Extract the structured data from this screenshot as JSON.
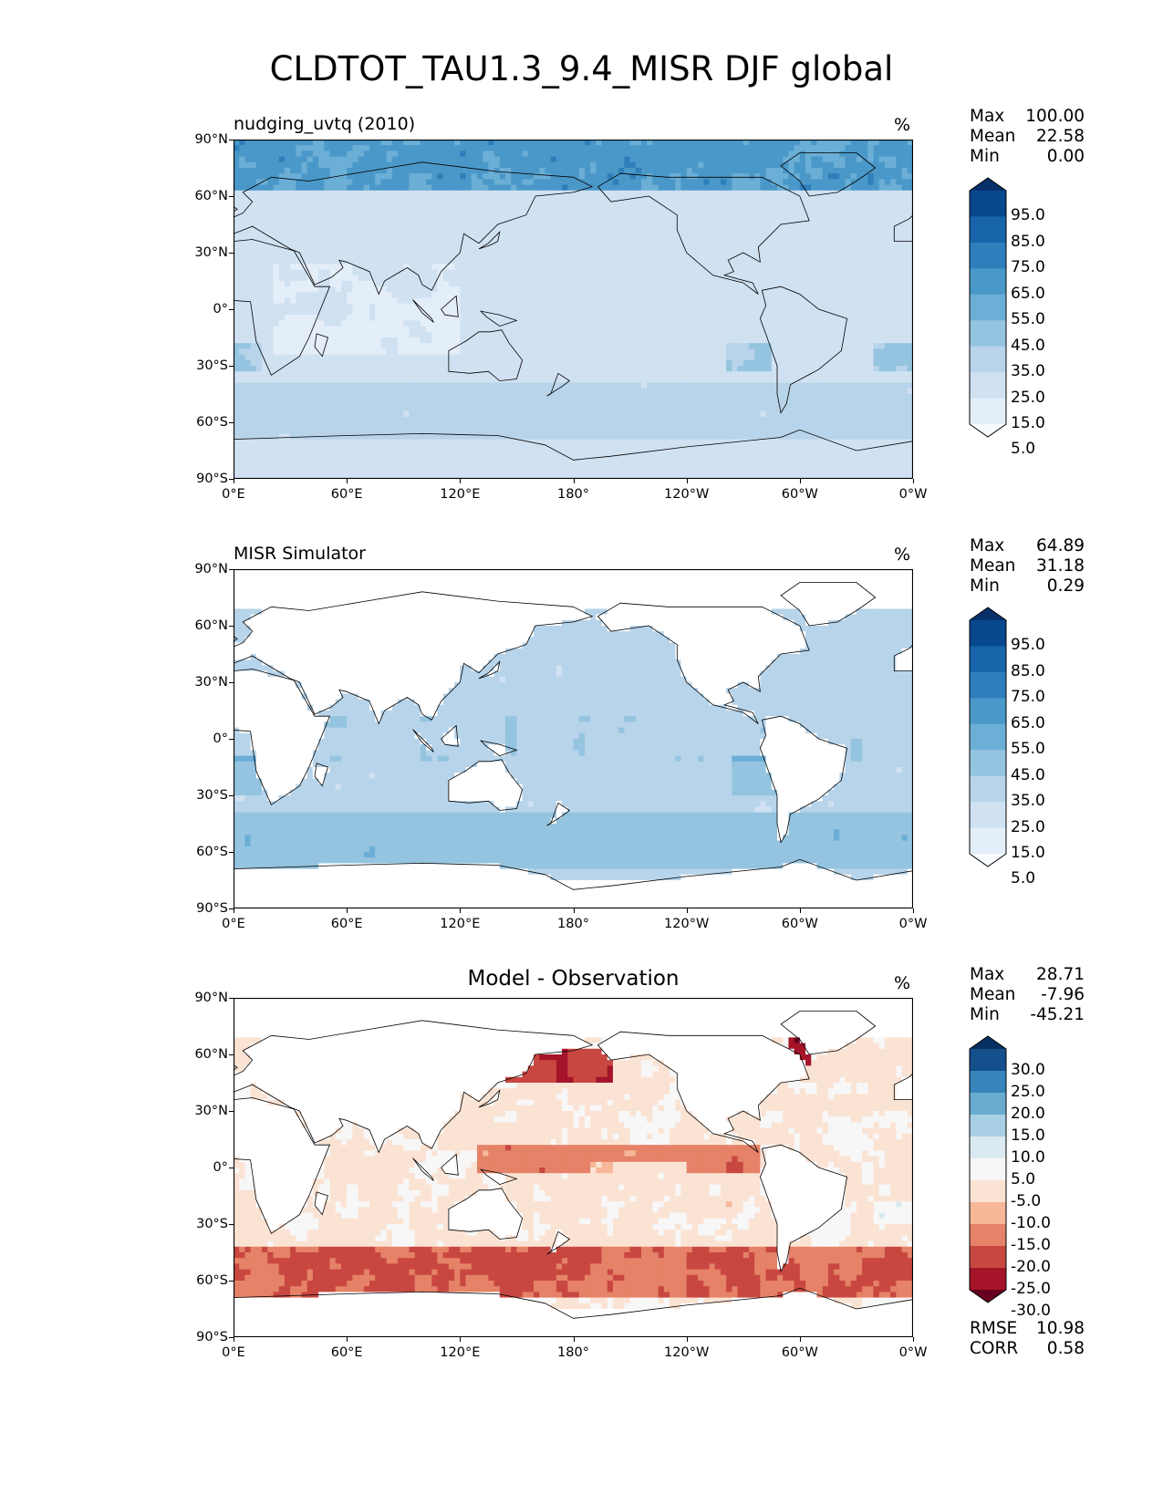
{
  "title": "CLDTOT_TAU1.3_9.4_MISR DJF global",
  "axes": {
    "lat_labels": [
      "90°N",
      "60°N",
      "30°N",
      "0°",
      "30°S",
      "60°S",
      "90°S"
    ],
    "lon_labels": [
      "0°E",
      "60°E",
      "120°E",
      "180°",
      "120°W",
      "60°W",
      "0°W"
    ]
  },
  "colors": {
    "blues": [
      "#f7fbff",
      "#e3eef9",
      "#d0e1f2",
      "#b7d4ea",
      "#94c4df",
      "#6baed6",
      "#4a98c9",
      "#2e7ebc",
      "#1764ab",
      "#08488e",
      "#08306b"
    ],
    "diverging": [
      "#67001f",
      "#a51429",
      "#c94741",
      "#e58267",
      "#f7b799",
      "#fbe3d4",
      "#f7f7f7",
      "#dbe9f1",
      "#a9cfe5",
      "#6aacd0",
      "#3885bc",
      "#15508d",
      "#053061"
    ],
    "land": "#ffffff",
    "coast": "#000000"
  },
  "panels": [
    {
      "id": "test",
      "left_title": "nudging_uvtq (2010)",
      "center_title": "",
      "units": "%",
      "stats": [
        {
          "label": "Max",
          "value": "100.00"
        },
        {
          "label": "Mean",
          "value": "22.58"
        },
        {
          "label": "Min",
          "value": "0.00"
        }
      ],
      "colorbar": {
        "scheme": "blues",
        "labels": [
          "95.0",
          "85.0",
          "75.0",
          "65.0",
          "55.0",
          "45.0",
          "35.0",
          "25.0",
          "15.0",
          "5.0"
        ]
      },
      "extra": []
    },
    {
      "id": "ref",
      "left_title": "MISR Simulator",
      "center_title": "",
      "units": "%",
      "stats": [
        {
          "label": "Max",
          "value": "64.89"
        },
        {
          "label": "Mean",
          "value": "31.18"
        },
        {
          "label": "Min",
          "value": "0.29"
        }
      ],
      "colorbar": {
        "scheme": "blues",
        "labels": [
          "95.0",
          "85.0",
          "75.0",
          "65.0",
          "55.0",
          "45.0",
          "35.0",
          "25.0",
          "15.0",
          "5.0"
        ]
      },
      "extra": []
    },
    {
      "id": "diff",
      "left_title": "",
      "center_title": "Model - Observation",
      "units": "%",
      "stats": [
        {
          "label": "Max",
          "value": "28.71"
        },
        {
          "label": "Mean",
          "value": "-7.96"
        },
        {
          "label": "Min",
          "value": "-45.21"
        }
      ],
      "colorbar": {
        "scheme": "diverging",
        "labels": [
          "30.0",
          "25.0",
          "20.0",
          "15.0",
          "10.0",
          "5.0",
          "-5.0",
          "-10.0",
          "-15.0",
          "-20.0",
          "-25.0",
          "-30.0"
        ]
      },
      "extra": [
        {
          "label": "RMSE",
          "value": "10.98"
        },
        {
          "label": "CORR",
          "value": "0.58"
        }
      ]
    }
  ]
}
